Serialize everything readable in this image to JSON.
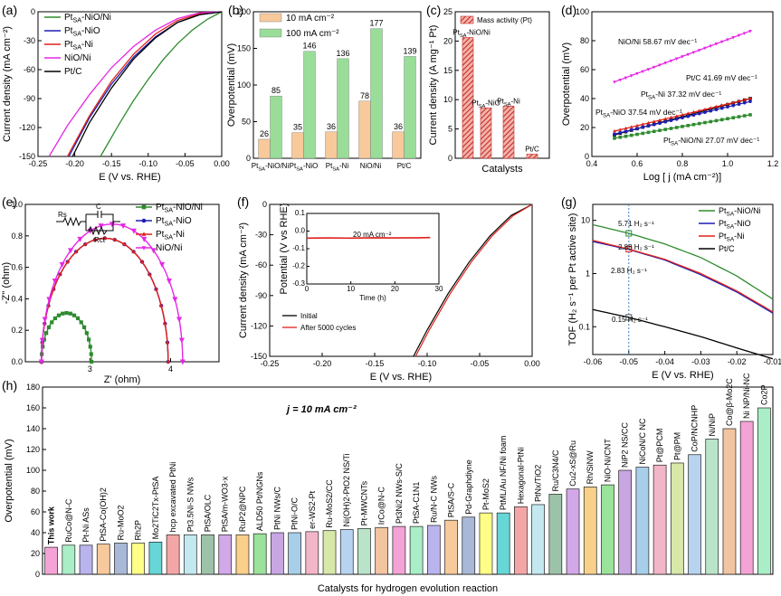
{
  "figure": {
    "panels": [
      "(a)",
      "(b)",
      "(c)",
      "(d)",
      "(e)",
      "(f)",
      "(g)",
      "(h)"
    ]
  },
  "colors": {
    "green": "#2e8b2e",
    "blue": "#1f1fb4",
    "red": "#e0201a",
    "magenta": "#e627e6",
    "black": "#000000",
    "orange": "#f7c99b",
    "lightgreen": "#99dd99",
    "darkred": "#c42d2d"
  },
  "chart_data": [
    {
      "id": "a",
      "type": "line",
      "title": "",
      "xlabel": "E (V vs. RHE)",
      "ylabel": "Current density (mA cm⁻²)",
      "xlim": [
        -0.25,
        0.0
      ],
      "ylim": [
        -150,
        0
      ],
      "xticks": [
        "-0.25",
        "-0.20",
        "-0.15",
        "-0.10",
        "-0.05",
        "0.00"
      ],
      "yticks": [
        "-150",
        "-120",
        "-90",
        "-60",
        "-30",
        "0"
      ],
      "series": [
        {
          "name": "PtSA-NiO/Ni",
          "color": "green",
          "x": [
            -0.165,
            -0.14,
            -0.12,
            -0.1,
            -0.08,
            -0.06,
            -0.04,
            -0.02,
            0.0
          ],
          "y": [
            -150,
            -117,
            -92,
            -70,
            -50,
            -33,
            -19,
            -8,
            0
          ]
        },
        {
          "name": "PtSA-NiO",
          "color": "blue",
          "x": [
            -0.208,
            -0.18,
            -0.15,
            -0.12,
            -0.09,
            -0.06,
            -0.03,
            0.0
          ],
          "y": [
            -150,
            -110,
            -75,
            -47,
            -26,
            -11,
            -3,
            0
          ]
        },
        {
          "name": "PtSA-Ni",
          "color": "red",
          "x": [
            -0.21,
            -0.18,
            -0.15,
            -0.12,
            -0.09,
            -0.06,
            -0.03,
            0.0
          ],
          "y": [
            -150,
            -108,
            -72,
            -44,
            -23,
            -9,
            -2,
            0
          ]
        },
        {
          "name": "NiO/Ni",
          "color": "magenta",
          "x": [
            -0.235,
            -0.21,
            -0.18,
            -0.15,
            -0.12,
            -0.09,
            -0.06,
            -0.03,
            0.0
          ],
          "y": [
            -150,
            -118,
            -86,
            -58,
            -36,
            -19,
            -7,
            -1,
            0
          ]
        },
        {
          "name": "Pt/C",
          "color": "black",
          "x": [
            -0.203,
            -0.18,
            -0.15,
            -0.12,
            -0.09,
            -0.06,
            -0.03,
            0.0
          ],
          "y": [
            -150,
            -115,
            -79,
            -49,
            -27,
            -11,
            -3,
            0
          ]
        }
      ]
    },
    {
      "id": "b",
      "type": "bar",
      "title": "",
      "xlabel": "",
      "ylabel": "Overpotential (mV)",
      "ylim": [
        0,
        200
      ],
      "yticks": [
        "0",
        "50",
        "100",
        "150",
        "200"
      ],
      "categories": [
        "PtSA-NiO/Ni",
        "PtSA-NiO",
        "PtSA-Ni",
        "NiO/Ni",
        "Pt/C"
      ],
      "series": [
        {
          "name": "10 mA cm⁻²",
          "color": "orange",
          "values": [
            26,
            35,
            36,
            78,
            36
          ]
        },
        {
          "name": "100 mA cm⁻²",
          "color": "lightgreen",
          "values": [
            85,
            146,
            136,
            177,
            139
          ]
        }
      ]
    },
    {
      "id": "c",
      "type": "bar",
      "title": "",
      "xlabel": "Catalysts",
      "ylabel": "Current density (A mg⁻¹ Pt)",
      "ylim": [
        0,
        25
      ],
      "yticks": [
        "0",
        "5",
        "10",
        "15",
        "20",
        "25"
      ],
      "legend": "Mass activity (Pt)",
      "categories": [
        "PtSA-NiO/Ni",
        "PtSA-NiO",
        "PtSA-Ni",
        "Pt/C"
      ],
      "values": [
        20.6,
        8.6,
        8.9,
        0.7
      ]
    },
    {
      "id": "d",
      "type": "line",
      "title": "",
      "xlabel": "Log [ j (mA cm⁻²)]",
      "ylabel": "Overpotential (mV)",
      "xlim": [
        0.4,
        1.2
      ],
      "ylim": [
        0,
        100
      ],
      "xticks": [
        "0.4",
        "0.6",
        "0.8",
        "1.0",
        "1.2"
      ],
      "yticks": [
        "0",
        "20",
        "40",
        "60",
        "80",
        "100"
      ],
      "series": [
        {
          "name": "NiO/Ni",
          "label": "NiO/Ni  58.67 mV dec⁻¹",
          "color": "magenta",
          "x": [
            0.5,
            1.1
          ],
          "y": [
            51.5,
            86.7
          ]
        },
        {
          "name": "Pt/C",
          "label": "Pt/C  41.69 mV dec⁻¹",
          "color": "black",
          "x": [
            0.5,
            1.1
          ],
          "y": [
            15.0,
            40.0
          ]
        },
        {
          "name": "PtSA-Ni",
          "label": "PtSA-Ni  37.32 mV dec⁻¹",
          "color": "red",
          "x": [
            0.5,
            1.1
          ],
          "y": [
            17.5,
            40.0
          ]
        },
        {
          "name": "PtSA-NiO",
          "label": "PtSA-NiO  37.54 mV dec⁻¹",
          "color": "blue",
          "x": [
            0.5,
            1.1
          ],
          "y": [
            15.5,
            38.0
          ]
        },
        {
          "name": "PtSA-NiO/Ni",
          "label": "PtSA-NiO/Ni  27.07 mV dec⁻¹",
          "color": "green",
          "x": [
            0.5,
            1.1
          ],
          "y": [
            12.6,
            28.8
          ]
        }
      ]
    },
    {
      "id": "e",
      "type": "scatter",
      "title": "",
      "xlabel": "Z' (ohm)",
      "ylabel": "-Z'' (ohm)",
      "xlim": [
        2.2,
        4.6
      ],
      "ylim": [
        0,
        1.0
      ],
      "xticks": [
        "3",
        "4"
      ],
      "yticks": [
        "0.0",
        "0.2",
        "0.4",
        "0.6",
        "0.8",
        "1.0"
      ],
      "circuit_labels": [
        "Rs",
        "C",
        "Rct"
      ],
      "series": [
        {
          "name": "PtSA-NiO/Ni",
          "color": "green",
          "rs": 2.4,
          "rct": 0.62
        },
        {
          "name": "PtSA-NiO",
          "color": "blue",
          "rs": 2.4,
          "rct": 1.57
        },
        {
          "name": "PtSA-Ni",
          "color": "red",
          "rs": 2.4,
          "rct": 1.57
        },
        {
          "name": "NiO/Ni",
          "color": "magenta",
          "rs": 2.4,
          "rct": 1.75
        }
      ]
    },
    {
      "id": "f",
      "type": "line",
      "title": "",
      "xlabel": "E (V vs. RHE)",
      "ylabel": "Current density (mA cm⁻²)",
      "xlim": [
        -0.25,
        0.0
      ],
      "ylim": [
        -150,
        0
      ],
      "xticks": [
        "-0.25",
        "-0.20",
        "-0.15",
        "-0.10",
        "-0.05",
        "0.00"
      ],
      "yticks": [
        "-150",
        "-120",
        "-90",
        "-60",
        "-30",
        "0"
      ],
      "series": [
        {
          "name": "Initial",
          "color": "black",
          "x": [
            -0.113,
            -0.1,
            -0.08,
            -0.06,
            -0.04,
            -0.02,
            0.0
          ],
          "y": [
            -150,
            -124,
            -88,
            -57,
            -31,
            -11,
            0
          ]
        },
        {
          "name": "After 5000 cycles",
          "color": "red",
          "x": [
            -0.111,
            -0.098,
            -0.078,
            -0.058,
            -0.038,
            -0.018,
            0.0
          ],
          "y": [
            -150,
            -124,
            -88,
            -57,
            -31,
            -11,
            0
          ]
        }
      ],
      "inset": {
        "xlabel": "Time (h)",
        "ylabel": "Potential (V vs RHE)",
        "annotation": "20 mA cm⁻²",
        "xlim": [
          0,
          30
        ],
        "ylim": [
          -0.3,
          0.1
        ],
        "xticks": [
          "0",
          "10",
          "20",
          "30"
        ],
        "yticks": [
          "-0.3",
          "-0.2",
          "-0.1",
          "0.0",
          "0.1"
        ],
        "x": [
          0,
          5,
          10,
          15,
          20,
          25,
          28
        ],
        "y": [
          -0.04,
          -0.039,
          -0.04,
          -0.038,
          -0.039,
          -0.038,
          -0.037
        ]
      }
    },
    {
      "id": "g",
      "type": "line",
      "title": "",
      "xlabel": "E (V vs. RHE)",
      "ylabel": "TOF (H₂ s⁻¹ per Pt active site)",
      "xlim": [
        -0.06,
        -0.01
      ],
      "yscale": "log",
      "ylim": [
        0.03,
        20
      ],
      "xticks": [
        "-0.06",
        "-0.05",
        "-0.04",
        "-0.03",
        "-0.02",
        "-0.01"
      ],
      "yticks": [
        "0.1",
        "1",
        "10"
      ],
      "marker_x": -0.05,
      "annotations": [
        "5.71 H₂ s⁻¹",
        "2.88 H₂ s⁻¹",
        "2.83 H₂ s⁻¹",
        "0.15 H₂ s⁻¹"
      ],
      "series": [
        {
          "name": "PtSA-NiO/Ni",
          "color": "green",
          "x": [
            -0.06,
            -0.05,
            -0.04,
            -0.03,
            -0.02,
            -0.01
          ],
          "y": [
            8.3,
            5.71,
            3.6,
            2.0,
            0.9,
            0.33
          ]
        },
        {
          "name": "PtSA-NiO",
          "color": "blue",
          "x": [
            -0.06,
            -0.05,
            -0.04,
            -0.03,
            -0.02,
            -0.01
          ],
          "y": [
            4.0,
            2.83,
            1.8,
            0.95,
            0.45,
            0.18
          ]
        },
        {
          "name": "PtSA-Ni",
          "color": "red",
          "x": [
            -0.06,
            -0.05,
            -0.04,
            -0.03,
            -0.02,
            -0.01
          ],
          "y": [
            4.2,
            2.88,
            1.85,
            1.0,
            0.47,
            0.19
          ]
        },
        {
          "name": "Pt/C",
          "color": "black",
          "x": [
            -0.06,
            -0.05,
            -0.04,
            -0.03,
            -0.02,
            -0.01
          ],
          "y": [
            0.21,
            0.15,
            0.1,
            0.065,
            0.04,
            0.025
          ]
        }
      ]
    },
    {
      "id": "h",
      "type": "bar",
      "title": "j = 10 mA cm⁻²",
      "xlabel": "Catalysts for hydrogen evolution reaction",
      "ylabel": "Overpotential (mV)",
      "ylim": [
        0,
        180
      ],
      "yticks": [
        "0",
        "20",
        "40",
        "60",
        "80",
        "100",
        "120",
        "140",
        "160",
        "180"
      ],
      "categories": [
        "This work",
        "RuCo@N-C",
        "Pt-Ni ASs",
        "PtSA-Co(OH)2",
        "Ru-MoO2",
        "Rh2P",
        "Mo2TiC2Tx-PtSA",
        "hcp excavated PtNi",
        "Pt3.5Ni-S NWs",
        "PtSA/OLC",
        "PtSA/m-WO3-x",
        "RuP2@NPC",
        "ALD50 Pt/NGNs",
        "PtNi NWs/C",
        "PtNi-O/C",
        "er-WS2-Pt",
        "Ru-MoS2/CC",
        "Ni(OH)2-PtO2 NS/Ti",
        "Pt-MWCNTs",
        "IrCo@N-C",
        "Pt3Ni2 NWs-S/C",
        "PtSA-C1N1",
        "Ru/N-C NWs",
        "PtSA/S-C",
        "Pd-Graphdiyne",
        "Pt-MoS2",
        "PtML/Au NF/Ni foam",
        "Hexagonal-PtNi",
        "PtNx/TiO2",
        "Ru/C3N4/C",
        "Cu2-xS@Ru",
        "Rh/SiNW",
        "NiO-Ni/CNT",
        "NiP2 NS/CC",
        "NiCoN/C NC",
        "Pt@PCM",
        "Pt@PM",
        "CoP/NCNHP",
        "Ni/NiP",
        "Co@β-Mo2C",
        "Ni NP/Ni-NC",
        "Co2P"
      ],
      "values": [
        26,
        28,
        28,
        29,
        30,
        30,
        31,
        38,
        38,
        38,
        38,
        38,
        39,
        40,
        40,
        41,
        42,
        43,
        44,
        45,
        46,
        46,
        47,
        52,
        55,
        59,
        59,
        65,
        67,
        77,
        82,
        84,
        86,
        100,
        103,
        105,
        107,
        115,
        130,
        140,
        147,
        160
      ]
    }
  ]
}
